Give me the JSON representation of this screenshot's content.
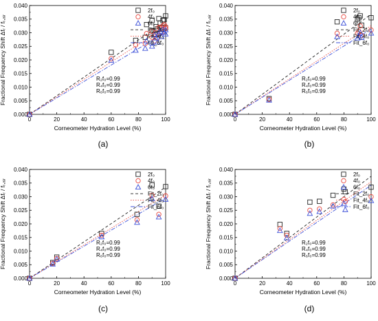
{
  "figure": {
    "x_label": "Corneometer Hydration Level (%)",
    "y_label": "Fractional Frequency Shift Δfᵣ / fᵣ,ₐᵢᵣ",
    "colors": {
      "2f0": "#222222",
      "4f0": "#e8453c",
      "6f0": "#3b4fd8"
    }
  },
  "legend": [
    {
      "label": "2f₀",
      "marker": "square",
      "color": "#222222"
    },
    {
      "label": "4f₀",
      "marker": "circle",
      "color": "#e8453c"
    },
    {
      "label": "6f₀",
      "marker": "triangle",
      "color": "#3b4fd8"
    },
    {
      "label": "Fit_2f₀",
      "line": "dash",
      "color": "#222222"
    },
    {
      "label": "Fit_4f₀",
      "line": "dot",
      "color": "#e8453c"
    },
    {
      "label": "Fit_6f₀",
      "line": "dashdot",
      "color": "#3b4fd8"
    }
  ],
  "chart_data": [
    {
      "type": "scatter",
      "panel": "(a)",
      "xlim": [
        0,
        100
      ],
      "ylim": [
        0,
        0.04
      ],
      "x_ticks": [
        0,
        20,
        40,
        60,
        80,
        100
      ],
      "y_ticks": [
        "0.000",
        "0.005",
        "0.010",
        "0.015",
        "0.020",
        "0.025",
        "0.030",
        "0.035",
        "0.040"
      ],
      "r_labels": [
        "R₂f₀=0.99",
        "R₄f₀=0.99",
        "R₆f₀=0.99"
      ],
      "series": [
        {
          "name": "2f₀",
          "x": [
            0,
            60,
            78,
            85,
            86,
            90,
            90,
            92,
            93,
            94,
            95,
            96,
            97,
            98,
            99,
            100,
            100
          ],
          "y": [
            0,
            0.0228,
            0.0272,
            0.0283,
            0.033,
            0.0345,
            0.0308,
            0.0295,
            0.0322,
            0.0314,
            0.0352,
            0.0335,
            0.032,
            0.0345,
            0.0348,
            0.0362,
            0.0318
          ]
        },
        {
          "name": "4f₀",
          "x": [
            0,
            60,
            78,
            85,
            86,
            90,
            90,
            92,
            93,
            94,
            95,
            96,
            97,
            98,
            99,
            100,
            100
          ],
          "y": [
            0,
            0.0205,
            0.0255,
            0.026,
            0.0297,
            0.0305,
            0.0283,
            0.027,
            0.03,
            0.028,
            0.032,
            0.0318,
            0.03,
            0.0325,
            0.033,
            0.0322,
            0.0315
          ]
        },
        {
          "name": "6f₀",
          "x": [
            0,
            60,
            78,
            85,
            86,
            90,
            90,
            92,
            93,
            94,
            95,
            96,
            97,
            98,
            99,
            100,
            100
          ],
          "y": [
            0,
            0.0198,
            0.0235,
            0.0242,
            0.027,
            0.0262,
            0.025,
            0.0292,
            0.028,
            0.0265,
            0.0298,
            0.0305,
            0.0285,
            0.0312,
            0.0302,
            0.031,
            0.0295
          ]
        },
        {
          "name": "Fit_2f₀",
          "x": [
            0,
            100
          ],
          "y": [
            0,
            0.0342
          ]
        },
        {
          "name": "Fit_4f₀",
          "x": [
            0,
            100
          ],
          "y": [
            0,
            0.0321
          ]
        },
        {
          "name": "Fit_6f₀",
          "x": [
            0,
            100
          ],
          "y": [
            0,
            0.0302
          ]
        }
      ]
    },
    {
      "type": "scatter",
      "panel": "(b)",
      "xlim": [
        0,
        100
      ],
      "ylim": [
        0,
        0.04
      ],
      "x_ticks": [
        0,
        20,
        40,
        60,
        80,
        100
      ],
      "y_ticks": [
        "0.000",
        "0.005",
        "0.010",
        "0.015",
        "0.020",
        "0.025",
        "0.030",
        "0.035",
        "0.040"
      ],
      "r_labels": [
        "R₂f₀=0.99",
        "R₄f₀=0.99",
        "R₆f₀=0.99"
      ],
      "series": [
        {
          "name": "2f₀",
          "x": [
            0,
            25,
            75,
            90,
            91,
            92,
            93,
            100
          ],
          "y": [
            0,
            0.0058,
            0.034,
            0.035,
            0.0355,
            0.0362,
            0.0328,
            0.0355
          ]
        },
        {
          "name": "4f₀",
          "x": [
            0,
            25,
            75,
            90,
            91,
            92,
            93,
            100
          ],
          "y": [
            0,
            0.0055,
            0.0298,
            0.0298,
            0.0305,
            0.0325,
            0.029,
            0.031
          ]
        },
        {
          "name": "6f₀",
          "x": [
            0,
            25,
            75,
            90,
            91,
            92,
            93,
            100
          ],
          "y": [
            0,
            0.0052,
            0.0285,
            0.028,
            0.0288,
            0.03,
            0.0282,
            0.0298
          ]
        },
        {
          "name": "Fit_2f₀",
          "x": [
            0,
            100
          ],
          "y": [
            0,
            0.0368
          ]
        },
        {
          "name": "Fit_4f₀",
          "x": [
            0,
            100
          ],
          "y": [
            0,
            0.0326
          ]
        },
        {
          "name": "Fit_6f₀",
          "x": [
            0,
            100
          ],
          "y": [
            0,
            0.0314
          ]
        }
      ]
    },
    {
      "type": "scatter",
      "panel": "(c)",
      "xlim": [
        0,
        100
      ],
      "ylim": [
        0,
        0.04
      ],
      "x_ticks": [
        0,
        20,
        40,
        60,
        80,
        100
      ],
      "y_ticks": [
        "0.000",
        "0.005",
        "0.010",
        "0.015",
        "0.020",
        "0.025",
        "0.030",
        "0.035",
        "0.040"
      ],
      "r_labels": [
        "R₂f₀=0.99",
        "R₄f₀=0.99",
        "R₆f₀=0.99"
      ],
      "series": [
        {
          "name": "2f₀",
          "x": [
            0,
            17,
            20,
            53,
            79,
            90,
            95,
            100
          ],
          "y": [
            0,
            0.0058,
            0.0078,
            0.0165,
            0.0235,
            0.0343,
            0.0265,
            0.0337
          ]
        },
        {
          "name": "4f₀",
          "x": [
            0,
            17,
            20,
            53,
            79,
            90,
            95,
            100
          ],
          "y": [
            0,
            0.0055,
            0.0073,
            0.0158,
            0.0215,
            0.0305,
            0.0235,
            0.0303
          ]
        },
        {
          "name": "6f₀",
          "x": [
            0,
            17,
            20,
            53,
            79,
            90,
            95,
            100
          ],
          "y": [
            0,
            0.0052,
            0.007,
            0.0152,
            0.0205,
            0.0292,
            0.0225,
            0.029
          ]
        },
        {
          "name": "Fit_2f₀",
          "x": [
            0,
            100
          ],
          "y": [
            0,
            0.0335
          ]
        },
        {
          "name": "Fit_4f₀",
          "x": [
            0,
            100
          ],
          "y": [
            0,
            0.0307
          ]
        },
        {
          "name": "Fit_6f₀",
          "x": [
            0,
            100
          ],
          "y": [
            0,
            0.0295
          ]
        }
      ]
    },
    {
      "type": "scatter",
      "panel": "(d)",
      "xlim": [
        0,
        100
      ],
      "ylim": [
        0,
        0.04
      ],
      "x_ticks": [
        0,
        20,
        40,
        60,
        80,
        100
      ],
      "y_ticks": [
        "0.000",
        "0.005",
        "0.010",
        "0.015",
        "0.020",
        "0.025",
        "0.030",
        "0.035",
        "0.040"
      ],
      "r_labels": [
        "R₂f₀=0.99",
        "R₄f₀=0.99",
        "R₆f₀=0.99"
      ],
      "series": [
        {
          "name": "2f₀",
          "x": [
            0,
            33,
            38,
            55,
            62,
            72,
            80,
            81,
            100
          ],
          "y": [
            0,
            0.0198,
            0.0165,
            0.028,
            0.0283,
            0.0305,
            0.0328,
            0.0318,
            0.0335
          ]
        },
        {
          "name": "4f₀",
          "x": [
            0,
            33,
            38,
            55,
            62,
            72,
            80,
            81,
            100
          ],
          "y": [
            0,
            0.0183,
            0.0158,
            0.025,
            0.0255,
            0.027,
            0.029,
            0.0282,
            0.03
          ]
        },
        {
          "name": "6f₀",
          "x": [
            0,
            33,
            38,
            55,
            62,
            72,
            80,
            81,
            100
          ],
          "y": [
            0,
            0.0175,
            0.0148,
            0.0238,
            0.0245,
            0.0265,
            0.0275,
            0.0252,
            0.0285
          ]
        },
        {
          "name": "Fit_2f₀",
          "x": [
            0,
            100
          ],
          "y": [
            0,
            0.0375
          ]
        },
        {
          "name": "Fit_4f₀",
          "x": [
            0,
            100
          ],
          "y": [
            0,
            0.0355
          ]
        },
        {
          "name": "Fit_6f₀",
          "x": [
            0,
            100
          ],
          "y": [
            0,
            0.0342
          ]
        }
      ]
    }
  ]
}
